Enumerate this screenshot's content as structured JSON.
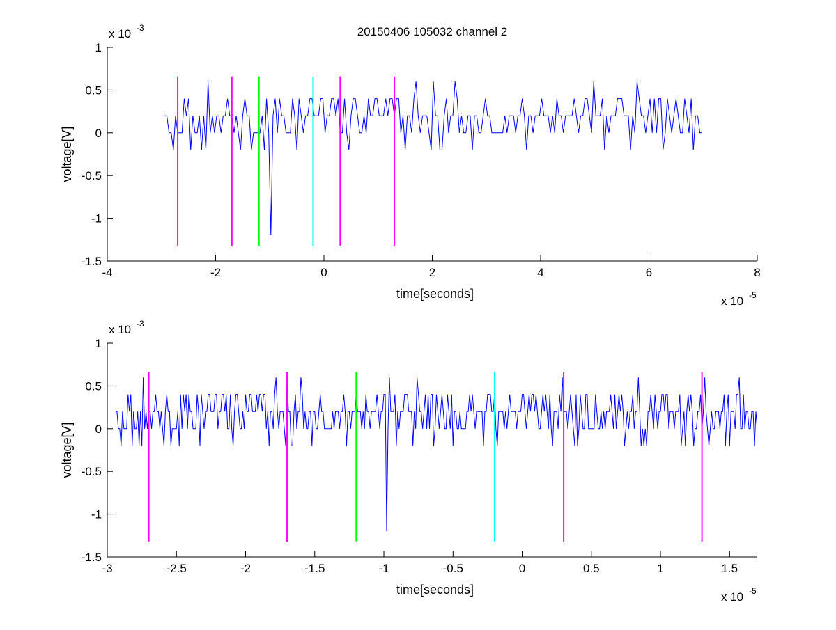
{
  "chart_data": [
    {
      "type": "line",
      "title": "20150406 105032 channel 2",
      "xlabel": "time[seconds]",
      "ylabel": "voltage[V]",
      "x_exponent_label": "x 10",
      "x_exponent_power": "-5",
      "y_exponent_label": "x 10",
      "y_exponent_power": "-3",
      "xlim": [
        -4,
        8
      ],
      "ylim": [
        -1.5,
        1
      ],
      "x_ticks": [
        -4,
        -2,
        0,
        2,
        4,
        6,
        8
      ],
      "x_tick_labels": [
        "-4",
        "-2",
        "0",
        "2",
        "4",
        "6",
        "8"
      ],
      "y_ticks": [
        -1.5,
        -1,
        -0.5,
        0,
        0.5,
        1
      ],
      "y_tick_labels": [
        "-1.5",
        "-1",
        "-0.5",
        "0",
        "0.5",
        "1"
      ],
      "grid": false,
      "signal": {
        "color": "#0000ff",
        "x_start": -2.94,
        "x_end": 7.0,
        "step": 0.04,
        "baseline_levels": [
          0,
          0.2
        ],
        "noise_levels": [
          -0.2,
          0.4,
          0.6
        ],
        "spikes": [
          {
            "x": -0.98,
            "y": -1.2
          }
        ]
      },
      "marker_lines": [
        {
          "x": -2.7,
          "ymin": -1.32,
          "ymax": 0.66,
          "color": "#ff00ff"
        },
        {
          "x": -1.7,
          "ymin": -1.32,
          "ymax": 0.66,
          "color": "#ff00ff"
        },
        {
          "x": -1.2,
          "ymin": -1.32,
          "ymax": 0.66,
          "color": "#00ff00"
        },
        {
          "x": -0.2,
          "ymin": -1.32,
          "ymax": 0.66,
          "color": "#00ffff"
        },
        {
          "x": 0.3,
          "ymin": -1.32,
          "ymax": 0.66,
          "color": "#ff00ff"
        },
        {
          "x": 1.3,
          "ymin": -1.32,
          "ymax": 0.66,
          "color": "#ff00ff"
        }
      ]
    },
    {
      "type": "line",
      "title": "",
      "xlabel": "time[seconds]",
      "ylabel": "voltage[V]",
      "x_exponent_label": "x 10",
      "x_exponent_power": "-5",
      "y_exponent_label": "x 10",
      "y_exponent_power": "-3",
      "xlim": [
        -3,
        1.7
      ],
      "ylim": [
        -1.5,
        1
      ],
      "x_ticks": [
        -3,
        -2.5,
        -2,
        -1.5,
        -1,
        -0.5,
        0,
        0.5,
        1,
        1.5
      ],
      "x_tick_labels": [
        "-3",
        "-2.5",
        "-2",
        "-1.5",
        "-1",
        "-0.5",
        "0",
        "0.5",
        "1",
        "1.5"
      ],
      "y_ticks": [
        -1.5,
        -1,
        -0.5,
        0,
        0.5,
        1
      ],
      "y_tick_labels": [
        "-1.5",
        "-1",
        "-0.5",
        "0",
        "0.5",
        "1"
      ],
      "grid": false,
      "signal": {
        "color": "#0000ff",
        "x_start": -2.94,
        "x_end": 1.7,
        "step": 0.01,
        "baseline_levels": [
          0,
          0.2
        ],
        "noise_levels": [
          -0.2,
          0.4,
          0.6
        ],
        "spikes": [
          {
            "x": -0.98,
            "y": -1.2
          }
        ]
      },
      "marker_lines": [
        {
          "x": -2.7,
          "ymin": -1.32,
          "ymax": 0.66,
          "color": "#ff00ff"
        },
        {
          "x": -1.7,
          "ymin": -1.32,
          "ymax": 0.66,
          "color": "#ff00ff"
        },
        {
          "x": -1.2,
          "ymin": -1.32,
          "ymax": 0.66,
          "color": "#00ff00"
        },
        {
          "x": -0.2,
          "ymin": -1.32,
          "ymax": 0.66,
          "color": "#00ffff"
        },
        {
          "x": 0.3,
          "ymin": -1.32,
          "ymax": 0.66,
          "color": "#ff00ff"
        },
        {
          "x": 1.3,
          "ymin": -1.32,
          "ymax": 0.66,
          "color": "#ff00ff"
        }
      ]
    }
  ]
}
